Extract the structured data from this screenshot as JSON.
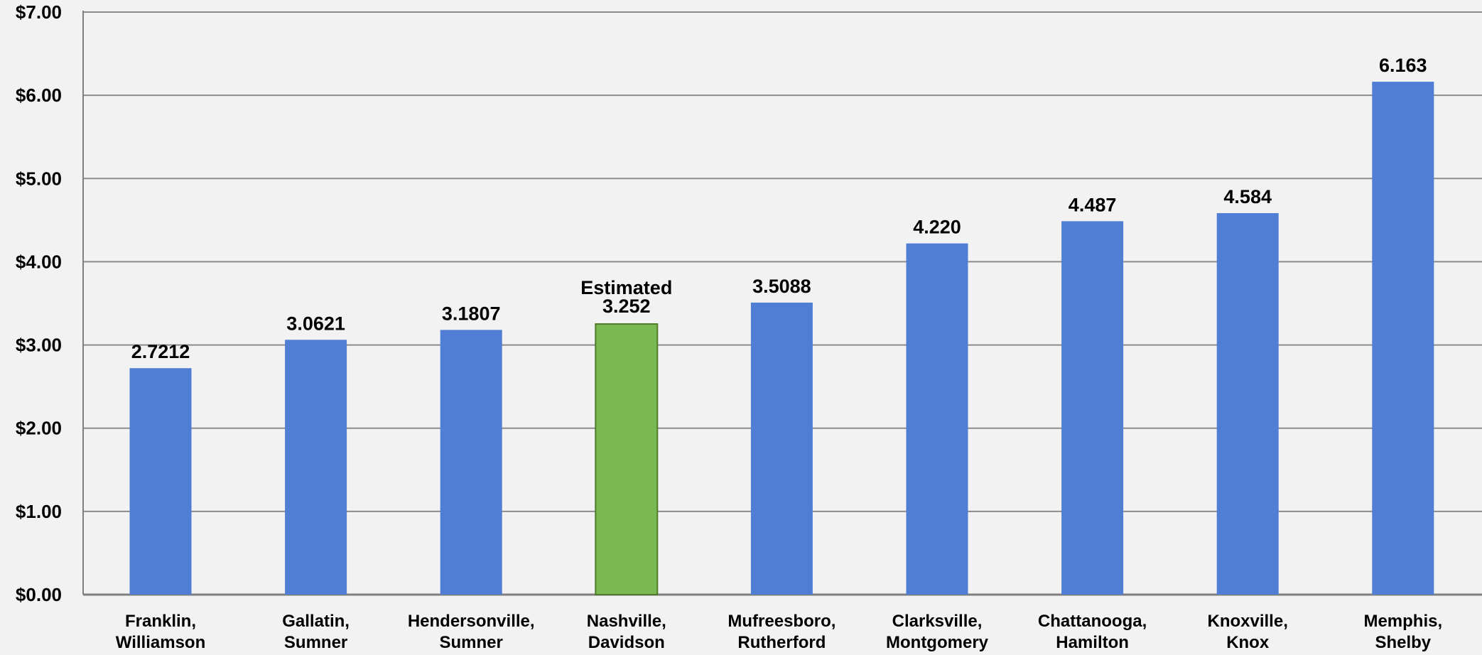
{
  "chart_data": {
    "type": "bar",
    "title": "",
    "xlabel": "",
    "ylabel": "",
    "ylim": [
      0,
      7
    ],
    "yticks": [
      {
        "value": 0,
        "label": "$0.00"
      },
      {
        "value": 1,
        "label": "$1.00"
      },
      {
        "value": 2,
        "label": "$2.00"
      },
      {
        "value": 3,
        "label": "$3.00"
      },
      {
        "value": 4,
        "label": "$4.00"
      },
      {
        "value": 5,
        "label": "$5.00"
      },
      {
        "value": 6,
        "label": "$6.00"
      },
      {
        "value": 7,
        "label": "$7.00"
      }
    ],
    "grid": true,
    "colors": {
      "bar": "#4f7ed4",
      "highlight": "#7ab851",
      "highlight_border": "#4f7c2a",
      "highlight_text": "#5a8f35",
      "grid": "#8c8c8c",
      "axis": "#7f7f7f",
      "background": "#f2f2f2"
    },
    "bars": [
      {
        "category": [
          "Franklin,",
          "Williamson"
        ],
        "value": 2.7212,
        "label": "2.7212",
        "highlight": false
      },
      {
        "category": [
          "Gallatin,",
          "Sumner"
        ],
        "value": 3.0621,
        "label": "3.0621",
        "highlight": false
      },
      {
        "category": [
          "Hendersonville,",
          "Sumner"
        ],
        "value": 3.1807,
        "label": "3.1807",
        "highlight": false
      },
      {
        "category": [
          "Nashville,",
          "Davidson"
        ],
        "value": 3.252,
        "label": "3.252",
        "note": "Estimated",
        "highlight": true
      },
      {
        "category": [
          "Mufreesboro,",
          "Rutherford"
        ],
        "value": 3.5088,
        "label": "3.5088",
        "highlight": false
      },
      {
        "category": [
          "Clarksville,",
          "Montgomery"
        ],
        "value": 4.22,
        "label": "4.220",
        "highlight": false
      },
      {
        "category": [
          "Chattanooga,",
          "Hamilton"
        ],
        "value": 4.487,
        "label": "4.487",
        "highlight": false
      },
      {
        "category": [
          "Knoxville,",
          "Knox"
        ],
        "value": 4.584,
        "label": "4.584",
        "highlight": false
      },
      {
        "category": [
          "Memphis,",
          "Shelby"
        ],
        "value": 6.163,
        "label": "6.163",
        "highlight": false
      }
    ]
  }
}
